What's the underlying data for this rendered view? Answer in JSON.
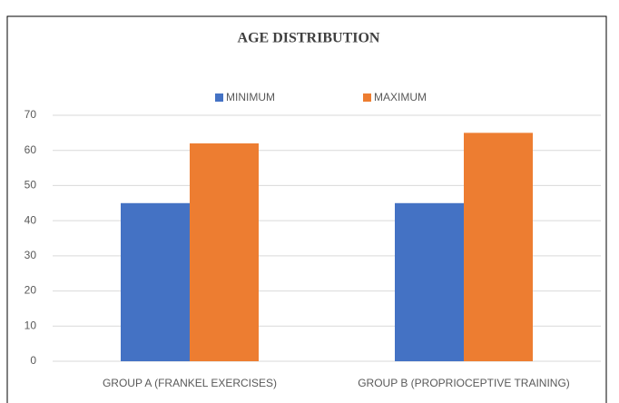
{
  "chart_data": {
    "type": "bar",
    "title": "AGE DISTRIBUTION",
    "categories": [
      "GROUP A (FRANKEL EXERCISES)",
      "GROUP B (PROPRIOCEPTIVE TRAINING)"
    ],
    "series": [
      {
        "name": "MINIMUM",
        "color": "#4472c4",
        "values": [
          45,
          45
        ]
      },
      {
        "name": "MAXIMUM",
        "color": "#ed7d31",
        "values": [
          62,
          65
        ]
      }
    ],
    "ylim": [
      0,
      70
    ],
    "yticks": [
      0,
      10,
      20,
      30,
      40,
      50,
      60,
      70
    ],
    "grid": true,
    "legend": "top"
  }
}
